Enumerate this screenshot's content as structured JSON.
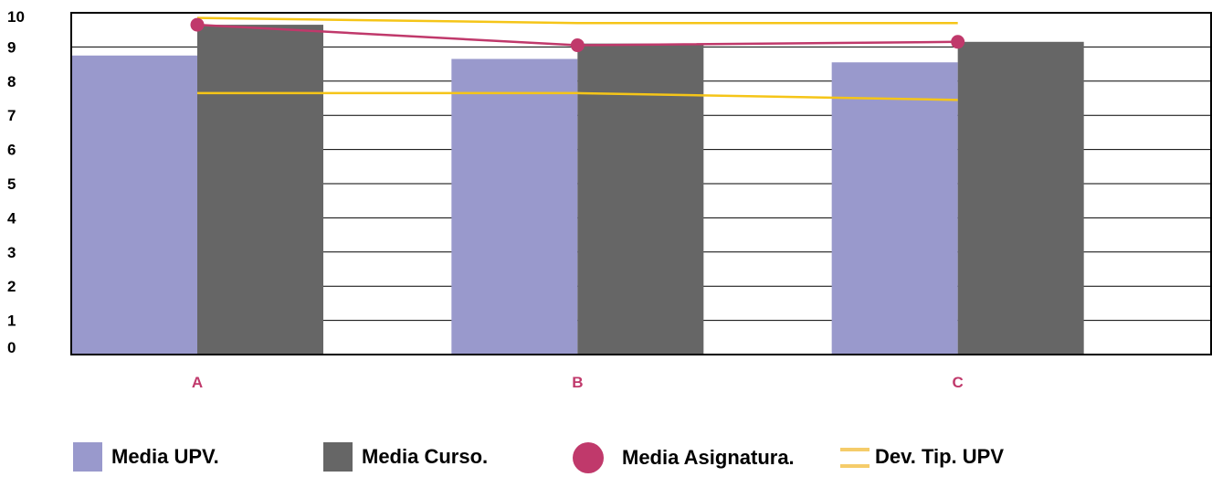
{
  "chart_data": {
    "type": "bar",
    "categories": [
      "A",
      "B",
      "C"
    ],
    "ylim": [
      0,
      10
    ],
    "yticks": [
      "0",
      "1",
      "2",
      "3",
      "4",
      "5",
      "6",
      "7",
      "8",
      "9",
      "10"
    ],
    "grid": true,
    "legend_position": "bottom",
    "series": [
      {
        "name": "Media UPV.",
        "kind": "bar",
        "color": "#9999cc",
        "values": [
          8.75,
          8.65,
          8.55
        ]
      },
      {
        "name": "Media Curso.",
        "kind": "bar",
        "color": "#666666",
        "values": [
          9.65,
          9.1,
          9.15
        ]
      },
      {
        "name": "Media Asignatura.",
        "kind": "line-markers",
        "color": "#c0396b",
        "values": [
          9.65,
          9.05,
          9.15
        ]
      },
      {
        "name": "Dev. Tip. UPV",
        "kind": "band",
        "color": "#f5c518",
        "upper": [
          9.85,
          9.7,
          9.7
        ],
        "lower": [
          7.65,
          7.65,
          7.45
        ]
      }
    ]
  }
}
